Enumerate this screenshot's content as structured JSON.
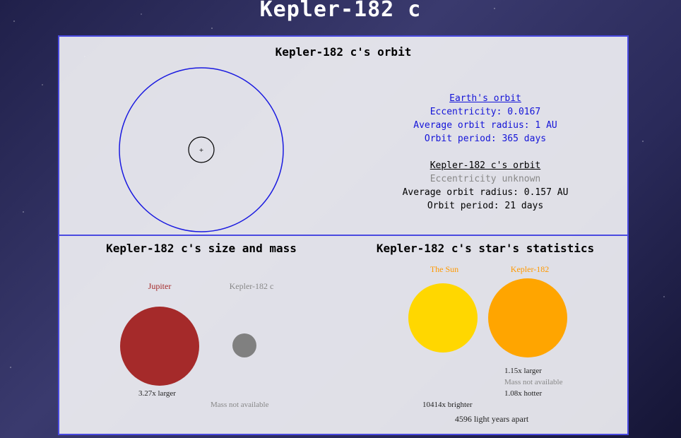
{
  "page_title": "Kepler-182 c",
  "orbit": {
    "title": "Kepler-182 c's orbit",
    "earth": {
      "heading": "Earth's orbit",
      "eccentricity": "Eccentricity: 0.0167",
      "radius": "Average orbit radius: 1 AU",
      "period": "Orbit period: 365 days"
    },
    "planet": {
      "heading": "Kepler-182 c's orbit",
      "eccentricity": "Eccentricity unknown",
      "radius": "Average orbit radius: 0.157 AU",
      "period": "Orbit period: 21 days"
    },
    "star_marker": "+",
    "colors": {
      "earth_orbit": "#1a1ae0",
      "planet_orbit": "#000000"
    }
  },
  "size": {
    "title": "Kepler-182 c's size and mass",
    "jupiter_label": "Jupiter",
    "planet_label": "Kepler-182 c",
    "size_compare": "3.27x larger",
    "mass_note": "Mass not available",
    "colors": {
      "jupiter": "#a52a2a",
      "planet": "#808080"
    }
  },
  "star": {
    "title": "Kepler-182 c's star's statistics",
    "sun_label": "The Sun",
    "star_label": "Kepler-182",
    "size_compare": "1.15x larger",
    "mass_note": "Mass not available",
    "temp_compare": "1.08x hotter",
    "brightness": "10414x brighter",
    "distance": "4596 light years apart",
    "colors": {
      "sun": "#ffd700",
      "star": "#ffa500",
      "label": "#ff9900"
    }
  }
}
